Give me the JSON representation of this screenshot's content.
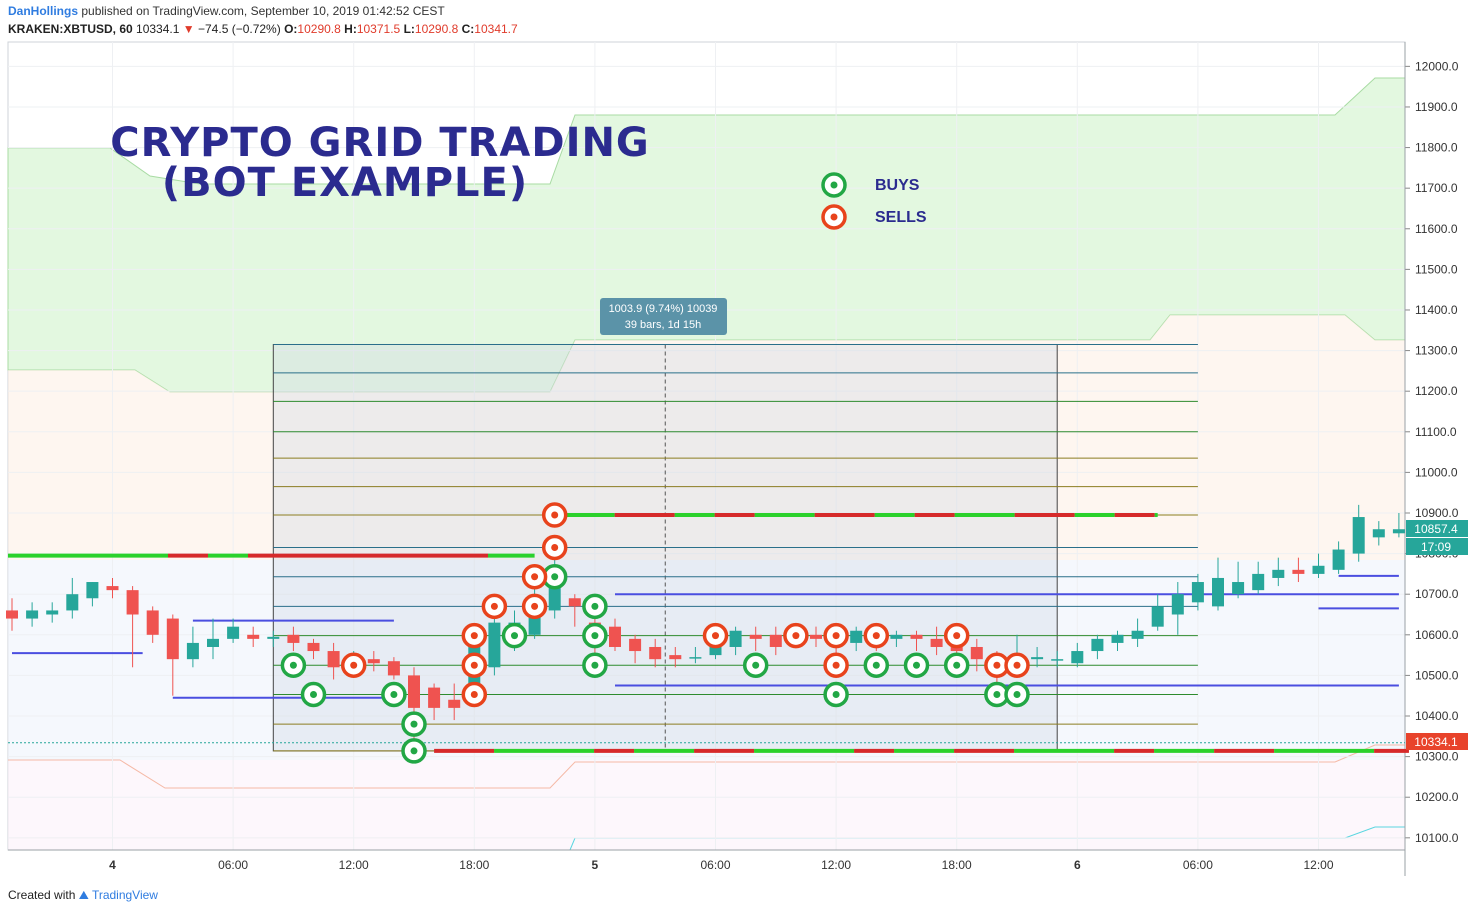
{
  "header": {
    "author": "DanHollings",
    "published": "published on TradingView.com, September 10, 2019 01:42:52 CEST",
    "symbol": "KRAKEN:XBTUSD, 60",
    "last": "10334.1",
    "change": "−74.5 (−0.72%)",
    "o_label": "O:",
    "o_value": "10290.8",
    "h_label": "H:",
    "h_value": "10371.5",
    "l_label": "L:",
    "l_value": "10290.8",
    "c_label": "C:",
    "c_value": "10341.7"
  },
  "footer": {
    "created_with": "Created with",
    "brand": "TradingView"
  },
  "colors": {
    "up": "#26a69a",
    "down": "#ef5350",
    "buy": "#22a745",
    "sell": "#e8431c",
    "title": "#2b2b8f",
    "kumo_green": "#d9f5d6",
    "kumo_red": "#fdeee4",
    "grid_line_green": "#2e8b2e",
    "grid_line_teal": "#2a6f8a",
    "grid_line_olive": "#8b7d20"
  },
  "chart_data": {
    "type": "candlestick",
    "title": "CRYPTO GRID TRADING",
    "subtitle": "(BOT EXAMPLE)",
    "legend": {
      "buys": "BUYS",
      "sells": "SELLS"
    },
    "ylim": [
      10070,
      12060
    ],
    "y_ticks": [
      "12000.0",
      "11900.0",
      "11800.0",
      "11700.0",
      "11600.0",
      "11500.0",
      "11400.0",
      "11300.0",
      "11200.0",
      "11100.0",
      "11000.0",
      "10900.0",
      "10800.0",
      "10700.0",
      "10600.0",
      "10500.0",
      "10400.0",
      "10300.0",
      "10200.0",
      "10100.0"
    ],
    "x_ticks": [
      {
        "label": "4",
        "bar": 5,
        "bold": true
      },
      {
        "label": "06:00",
        "bar": 11,
        "bold": false
      },
      {
        "label": "12:00",
        "bar": 17,
        "bold": false
      },
      {
        "label": "18:00",
        "bar": 23,
        "bold": false
      },
      {
        "label": "5",
        "bar": 29,
        "bold": true
      },
      {
        "label": "06:00",
        "bar": 35,
        "bold": false
      },
      {
        "label": "12:00",
        "bar": 41,
        "bold": false
      },
      {
        "label": "18:00",
        "bar": 47,
        "bold": false
      },
      {
        "label": "6",
        "bar": 53,
        "bold": true
      },
      {
        "label": "06:00",
        "bar": 59,
        "bold": false
      },
      {
        "label": "12:00",
        "bar": 65,
        "bold": false
      }
    ],
    "price_labels": {
      "current_close": "10857.4",
      "countdown": "17:09",
      "last_trade": "10334.1"
    },
    "measure_tooltip": {
      "line1": "1003.9 (9.74%) 10039",
      "line2": "39 bars, 1d 15h"
    },
    "grid_levels": [
      10314,
      10380,
      10453,
      10525,
      10598,
      10670,
      10743,
      10815,
      10895,
      10965,
      11035,
      11100,
      11175,
      11245,
      11315
    ],
    "candles": [
      {
        "o": 10660,
        "h": 10690,
        "l": 10610,
        "c": 10640
      },
      {
        "o": 10640,
        "h": 10680,
        "l": 10620,
        "c": 10660
      },
      {
        "o": 10650,
        "h": 10680,
        "l": 10630,
        "c": 10660
      },
      {
        "o": 10660,
        "h": 10740,
        "l": 10640,
        "c": 10700
      },
      {
        "o": 10690,
        "h": 10730,
        "l": 10670,
        "c": 10730
      },
      {
        "o": 10720,
        "h": 10740,
        "l": 10690,
        "c": 10710
      },
      {
        "o": 10710,
        "h": 10720,
        "l": 10520,
        "c": 10650
      },
      {
        "o": 10660,
        "h": 10670,
        "l": 10580,
        "c": 10600
      },
      {
        "o": 10640,
        "h": 10650,
        "l": 10450,
        "c": 10540
      },
      {
        "o": 10540,
        "h": 10620,
        "l": 10520,
        "c": 10580
      },
      {
        "o": 10570,
        "h": 10640,
        "l": 10540,
        "c": 10590
      },
      {
        "o": 10590,
        "h": 10640,
        "l": 10580,
        "c": 10620
      },
      {
        "o": 10600,
        "h": 10620,
        "l": 10570,
        "c": 10590
      },
      {
        "o": 10590,
        "h": 10610,
        "l": 10570,
        "c": 10595
      },
      {
        "o": 10600,
        "h": 10620,
        "l": 10560,
        "c": 10580
      },
      {
        "o": 10580,
        "h": 10590,
        "l": 10540,
        "c": 10560
      },
      {
        "o": 10560,
        "h": 10580,
        "l": 10490,
        "c": 10520
      },
      {
        "o": 10520,
        "h": 10560,
        "l": 10500,
        "c": 10540
      },
      {
        "o": 10540,
        "h": 10560,
        "l": 10510,
        "c": 10530
      },
      {
        "o": 10535,
        "h": 10545,
        "l": 10490,
        "c": 10500
      },
      {
        "o": 10500,
        "h": 10520,
        "l": 10310,
        "c": 10420
      },
      {
        "o": 10470,
        "h": 10480,
        "l": 10390,
        "c": 10420
      },
      {
        "o": 10440,
        "h": 10480,
        "l": 10390,
        "c": 10420
      },
      {
        "o": 10450,
        "h": 10590,
        "l": 10440,
        "c": 10580
      },
      {
        "o": 10520,
        "h": 10640,
        "l": 10500,
        "c": 10630
      },
      {
        "o": 10580,
        "h": 10660,
        "l": 10560,
        "c": 10630
      },
      {
        "o": 10600,
        "h": 10720,
        "l": 10590,
        "c": 10680
      },
      {
        "o": 10660,
        "h": 10800,
        "l": 10640,
        "c": 10750
      },
      {
        "o": 10690,
        "h": 10700,
        "l": 10620,
        "c": 10670
      },
      {
        "o": 10630,
        "h": 10680,
        "l": 10520,
        "c": 10600
      },
      {
        "o": 10620,
        "h": 10640,
        "l": 10560,
        "c": 10570
      },
      {
        "o": 10590,
        "h": 10600,
        "l": 10530,
        "c": 10560
      },
      {
        "o": 10570,
        "h": 10590,
        "l": 10520,
        "c": 10540
      },
      {
        "o": 10550,
        "h": 10570,
        "l": 10520,
        "c": 10540
      },
      {
        "o": 10545,
        "h": 10570,
        "l": 10530,
        "c": 10545
      },
      {
        "o": 10550,
        "h": 10610,
        "l": 10540,
        "c": 10590
      },
      {
        "o": 10570,
        "h": 10620,
        "l": 10550,
        "c": 10610
      },
      {
        "o": 10600,
        "h": 10620,
        "l": 10560,
        "c": 10590
      },
      {
        "o": 10600,
        "h": 10620,
        "l": 10550,
        "c": 10570
      },
      {
        "o": 10590,
        "h": 10610,
        "l": 10570,
        "c": 10600
      },
      {
        "o": 10600,
        "h": 10620,
        "l": 10570,
        "c": 10590
      },
      {
        "o": 10590,
        "h": 10610,
        "l": 10550,
        "c": 10580
      },
      {
        "o": 10580,
        "h": 10620,
        "l": 10560,
        "c": 10610
      },
      {
        "o": 10600,
        "h": 10620,
        "l": 10560,
        "c": 10580
      },
      {
        "o": 10590,
        "h": 10610,
        "l": 10570,
        "c": 10600
      },
      {
        "o": 10600,
        "h": 10610,
        "l": 10560,
        "c": 10590
      },
      {
        "o": 10590,
        "h": 10620,
        "l": 10550,
        "c": 10570
      },
      {
        "o": 10580,
        "h": 10600,
        "l": 10540,
        "c": 10560
      },
      {
        "o": 10570,
        "h": 10590,
        "l": 10510,
        "c": 10540
      },
      {
        "o": 10550,
        "h": 10560,
        "l": 10480,
        "c": 10520
      },
      {
        "o": 10530,
        "h": 10600,
        "l": 10500,
        "c": 10540
      },
      {
        "o": 10540,
        "h": 10570,
        "l": 10520,
        "c": 10545
      },
      {
        "o": 10540,
        "h": 10560,
        "l": 10520,
        "c": 10540
      },
      {
        "o": 10530,
        "h": 10580,
        "l": 10520,
        "c": 10560
      },
      {
        "o": 10560,
        "h": 10600,
        "l": 10540,
        "c": 10590
      },
      {
        "o": 10580,
        "h": 10610,
        "l": 10560,
        "c": 10600
      },
      {
        "o": 10590,
        "h": 10640,
        "l": 10570,
        "c": 10610
      },
      {
        "o": 10620,
        "h": 10700,
        "l": 10610,
        "c": 10670
      },
      {
        "o": 10650,
        "h": 10730,
        "l": 10600,
        "c": 10700
      },
      {
        "o": 10680,
        "h": 10750,
        "l": 10660,
        "c": 10730
      },
      {
        "o": 10670,
        "h": 10790,
        "l": 10660,
        "c": 10740
      },
      {
        "o": 10700,
        "h": 10780,
        "l": 10690,
        "c": 10730
      },
      {
        "o": 10710,
        "h": 10780,
        "l": 10700,
        "c": 10750
      },
      {
        "o": 10740,
        "h": 10790,
        "l": 10720,
        "c": 10760
      },
      {
        "o": 10760,
        "h": 10790,
        "l": 10730,
        "c": 10750
      },
      {
        "o": 10750,
        "h": 10800,
        "l": 10740,
        "c": 10770
      },
      {
        "o": 10760,
        "h": 10830,
        "l": 10750,
        "c": 10810
      },
      {
        "o": 10800,
        "h": 10920,
        "l": 10780,
        "c": 10890
      },
      {
        "o": 10840,
        "h": 10880,
        "l": 10820,
        "c": 10860
      },
      {
        "o": 10850,
        "h": 10900,
        "l": 10840,
        "c": 10860
      }
    ],
    "buy_orders": [
      {
        "bar": 14,
        "y": 10525
      },
      {
        "bar": 15,
        "y": 10453
      },
      {
        "bar": 19,
        "y": 10453
      },
      {
        "bar": 20,
        "y": 10380
      },
      {
        "bar": 20,
        "y": 10314
      },
      {
        "bar": 25,
        "y": 10598
      },
      {
        "bar": 27,
        "y": 10743
      },
      {
        "bar": 29,
        "y": 10670
      },
      {
        "bar": 29,
        "y": 10598
      },
      {
        "bar": 29,
        "y": 10525
      },
      {
        "bar": 37,
        "y": 10525
      },
      {
        "bar": 41,
        "y": 10453
      },
      {
        "bar": 43,
        "y": 10525
      },
      {
        "bar": 45,
        "y": 10525
      },
      {
        "bar": 47,
        "y": 10525
      },
      {
        "bar": 49,
        "y": 10453
      },
      {
        "bar": 50,
        "y": 10453
      }
    ],
    "sell_orders": [
      {
        "bar": 17,
        "y": 10525
      },
      {
        "bar": 23,
        "y": 10598
      },
      {
        "bar": 23,
        "y": 10525
      },
      {
        "bar": 23,
        "y": 10453
      },
      {
        "bar": 24,
        "y": 10670
      },
      {
        "bar": 26,
        "y": 10743
      },
      {
        "bar": 26,
        "y": 10670
      },
      {
        "bar": 27,
        "y": 10895
      },
      {
        "bar": 27,
        "y": 10815
      },
      {
        "bar": 35,
        "y": 10598
      },
      {
        "bar": 39,
        "y": 10598
      },
      {
        "bar": 41,
        "y": 10598
      },
      {
        "bar": 41,
        "y": 10525
      },
      {
        "bar": 43,
        "y": 10598
      },
      {
        "bar": 47,
        "y": 10598
      },
      {
        "bar": 49,
        "y": 10525
      },
      {
        "bar": 50,
        "y": 10525
      }
    ]
  }
}
